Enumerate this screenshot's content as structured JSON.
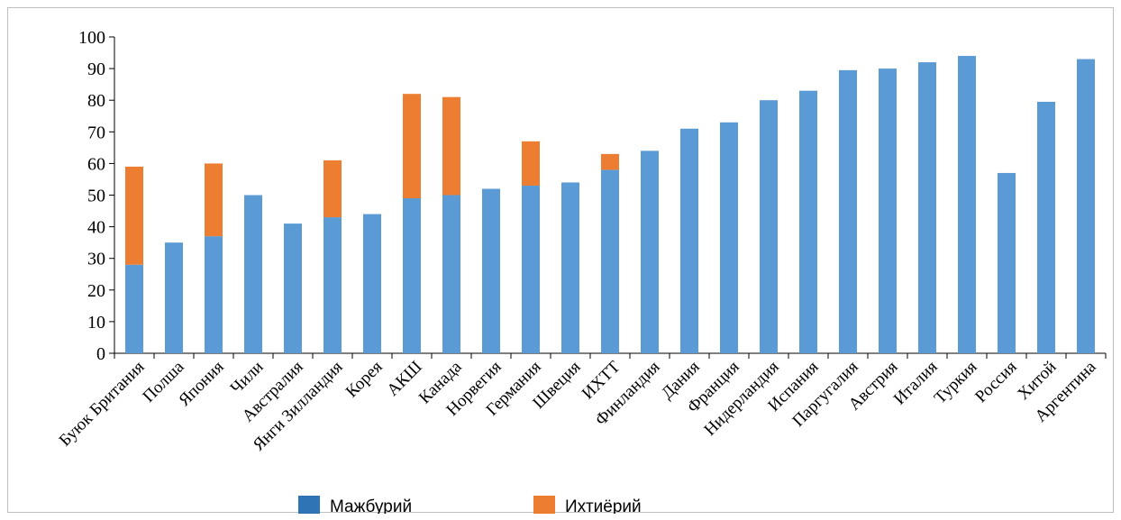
{
  "chart_data": {
    "type": "bar",
    "stacked": true,
    "title": "",
    "xlabel": "",
    "ylabel": "",
    "ylim": [
      0,
      100
    ],
    "yticks": [
      0,
      10,
      20,
      30,
      40,
      50,
      60,
      70,
      80,
      90,
      100
    ],
    "grid": false,
    "legend_position": "bottom",
    "categories": [
      "Буюк Бритaния",
      "Полша",
      "Япония",
      "Чили",
      "Австралия",
      "Янги Зилландия",
      "Корея",
      "АКШ",
      "Канада",
      "Норвегия",
      "Германия",
      "Швеция",
      "ИХТТ",
      "Финландия",
      "Дания",
      "Франция",
      "Нидерландия",
      "Испания",
      "Паргугалия",
      "Австрия",
      "Италия",
      "Туркия",
      "Россия",
      "Хитой",
      "Аргентина"
    ],
    "series": [
      {
        "name": "Мажбурий",
        "color": "#5b9bd5",
        "legend_color": "#2e75b6",
        "values": [
          28,
          35,
          37,
          50,
          41,
          43,
          44,
          49,
          50,
          52,
          53,
          54,
          58,
          64,
          71,
          73,
          80,
          83,
          89.5,
          90,
          92,
          94,
          57,
          79.5,
          93
        ]
      },
      {
        "name": "Ихтиёрий",
        "color": "#ed7d31",
        "legend_color": "#ed7d31",
        "values": [
          31,
          0,
          23,
          0,
          0,
          18,
          0,
          33,
          31,
          0,
          14,
          0,
          5,
          0,
          0,
          0,
          0,
          0,
          0,
          0,
          0,
          0,
          0,
          0,
          0
        ]
      }
    ]
  }
}
